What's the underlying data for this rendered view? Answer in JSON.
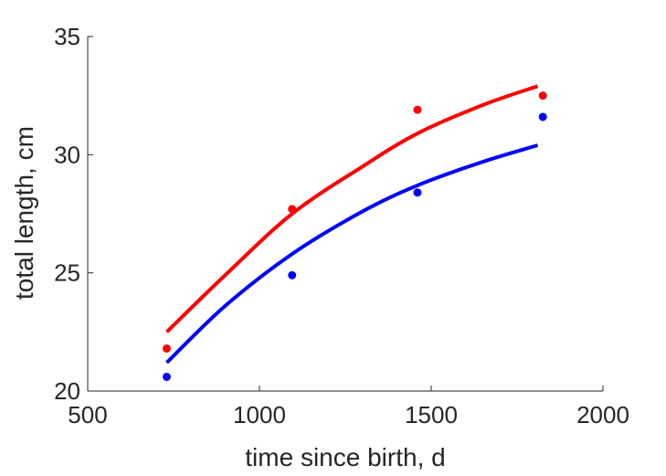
{
  "chart_data": {
    "type": "scatter",
    "title": "",
    "xlabel": "time since birth, d",
    "ylabel": "total length, cm",
    "xlim": [
      500,
      2000
    ],
    "ylim": [
      20,
      35
    ],
    "xticks": [
      500,
      1000,
      1500,
      2000
    ],
    "yticks": [
      20,
      25,
      30,
      35
    ],
    "grid": false,
    "legend": "none",
    "series": [
      {
        "color": "#ff0000",
        "points": [
          {
            "x": 730,
            "y": 21.8
          },
          {
            "x": 1095,
            "y": 27.7
          },
          {
            "x": 1460,
            "y": 31.9
          },
          {
            "x": 1825,
            "y": 32.5
          }
        ],
        "fit": [
          {
            "x": 730,
            "y": 22.5
          },
          {
            "x": 900,
            "y": 24.9
          },
          {
            "x": 1095,
            "y": 27.5
          },
          {
            "x": 1300,
            "y": 29.5
          },
          {
            "x": 1460,
            "y": 30.9
          },
          {
            "x": 1650,
            "y": 32.1
          },
          {
            "x": 1810,
            "y": 32.9
          }
        ]
      },
      {
        "color": "#0000ff",
        "points": [
          {
            "x": 730,
            "y": 20.6
          },
          {
            "x": 1095,
            "y": 24.9
          },
          {
            "x": 1460,
            "y": 28.4
          },
          {
            "x": 1825,
            "y": 31.6
          }
        ],
        "fit": [
          {
            "x": 730,
            "y": 21.2
          },
          {
            "x": 900,
            "y": 23.6
          },
          {
            "x": 1095,
            "y": 25.8
          },
          {
            "x": 1300,
            "y": 27.6
          },
          {
            "x": 1460,
            "y": 28.7
          },
          {
            "x": 1650,
            "y": 29.7
          },
          {
            "x": 1810,
            "y": 30.4
          }
        ]
      }
    ]
  }
}
